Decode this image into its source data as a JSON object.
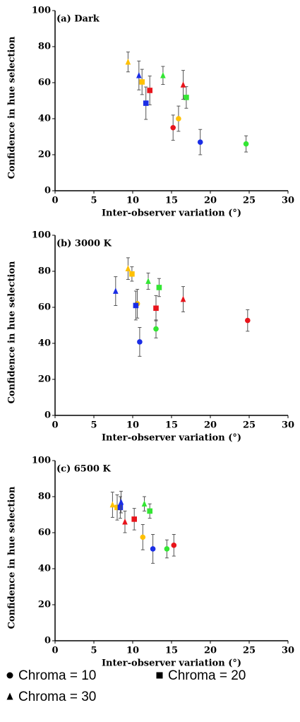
{
  "chart_data": [
    {
      "type": "scatter",
      "title": "(a) Dark",
      "x_label": "Inter-observer variation (°)",
      "y_label": "Confidence in hue selection",
      "xlim": [
        0,
        30
      ],
      "xticks": [
        0,
        5,
        10,
        15,
        20,
        25,
        30
      ],
      "ylim": [
        0,
        100
      ],
      "yticks": [
        0,
        20,
        40,
        60,
        80,
        100
      ],
      "series": [
        {
          "marker": "circle",
          "x": [
            15.2,
            15.9,
            18.7,
            24.6
          ],
          "values": [
            35,
            40,
            27,
            26
          ],
          "errors": [
            7,
            7,
            7,
            4.5
          ],
          "colors": [
            "#e8141b",
            "#ffc000",
            "#1a2de6",
            "#33e633"
          ]
        },
        {
          "marker": "square",
          "x": [
            11.2,
            12.2,
            11.7,
            16.9
          ],
          "values": [
            60.4,
            55.7,
            48.6,
            51.8
          ],
          "errors": [
            7,
            8,
            9,
            6
          ],
          "colors": [
            "#ffc000",
            "#e8141b",
            "#1a2de6",
            "#33e633"
          ]
        },
        {
          "marker": "triangle",
          "x": [
            9.4,
            10.8,
            13.9,
            16.5
          ],
          "values": [
            71.5,
            64,
            64,
            58.8
          ],
          "errors": [
            5.5,
            8,
            5,
            8
          ],
          "colors": [
            "#ffc000",
            "#1a2de6",
            "#33e633",
            "#e8141b"
          ]
        }
      ]
    },
    {
      "type": "scatter",
      "title": "(b) 3000 K",
      "x_label": "Inter-observer variation (°)",
      "y_label": "Confidence in hue selection",
      "xlim": [
        0,
        30
      ],
      "xticks": [
        0,
        5,
        10,
        15,
        20,
        25,
        30
      ],
      "ylim": [
        0,
        100
      ],
      "yticks": [
        0,
        20,
        40,
        60,
        80,
        100
      ],
      "series": [
        {
          "marker": "circle",
          "x": [
            10.6,
            10.9,
            13,
            24.8
          ],
          "values": [
            62,
            40.8,
            48,
            52.7
          ],
          "errors": [
            8,
            8,
            5,
            6
          ],
          "colors": [
            "#ffc000",
            "#1a2de6",
            "#33e633",
            "#e8141b"
          ]
        },
        {
          "marker": "square",
          "x": [
            9.9,
            10.4,
            13.4,
            13
          ],
          "values": [
            78.5,
            61,
            71,
            59.5
          ],
          "errors": [
            4,
            8,
            5,
            7
          ],
          "colors": [
            "#ffc000",
            "#1a2de6",
            "#33e633",
            "#e8141b"
          ]
        },
        {
          "marker": "triangle",
          "x": [
            7.8,
            9.4,
            12,
            16.5
          ],
          "values": [
            69,
            81.5,
            74.5,
            64.5
          ],
          "errors": [
            8,
            6,
            4.5,
            7
          ],
          "colors": [
            "#1a2de6",
            "#ffc000",
            "#33e633",
            "#e8141b"
          ]
        }
      ]
    },
    {
      "type": "scatter",
      "title": "(c) 6500 K",
      "x_label": "Inter-observer variation (°)",
      "y_label": "Confidence in hue selection",
      "xlim": [
        0,
        30
      ],
      "xticks": [
        0,
        5,
        10,
        15,
        20,
        25,
        30
      ],
      "ylim": [
        0,
        100
      ],
      "yticks": [
        0,
        20,
        40,
        60,
        80,
        100
      ],
      "series": [
        {
          "marker": "circle",
          "x": [
            11.3,
            12.6,
            14.4,
            15.3
          ],
          "values": [
            57.5,
            51,
            51,
            53
          ],
          "errors": [
            7,
            8,
            5,
            6
          ],
          "colors": [
            "#ffc000",
            "#1a2de6",
            "#33e633",
            "#e8141b"
          ]
        },
        {
          "marker": "square",
          "x": [
            8,
            8.4,
            10.2,
            12.2
          ],
          "values": [
            74,
            74,
            67.5,
            72
          ],
          "errors": [
            7,
            6,
            6,
            4
          ],
          "colors": [
            "#ffc000",
            "#1a2de6",
            "#e8141b",
            "#33e633"
          ]
        },
        {
          "marker": "triangle",
          "x": [
            7.4,
            8.5,
            9,
            11.5
          ],
          "values": [
            75.5,
            77,
            66,
            76
          ],
          "errors": [
            7,
            6,
            6,
            4
          ],
          "colors": [
            "#ffc000",
            "#1a2de6",
            "#e8141b",
            "#33e633"
          ]
        }
      ]
    }
  ],
  "legend": [
    {
      "name": "Chroma = 10",
      "marker": "circle"
    },
    {
      "name": "Chroma = 20",
      "marker": "square"
    },
    {
      "name": "Chroma = 30",
      "marker": "triangle"
    }
  ]
}
